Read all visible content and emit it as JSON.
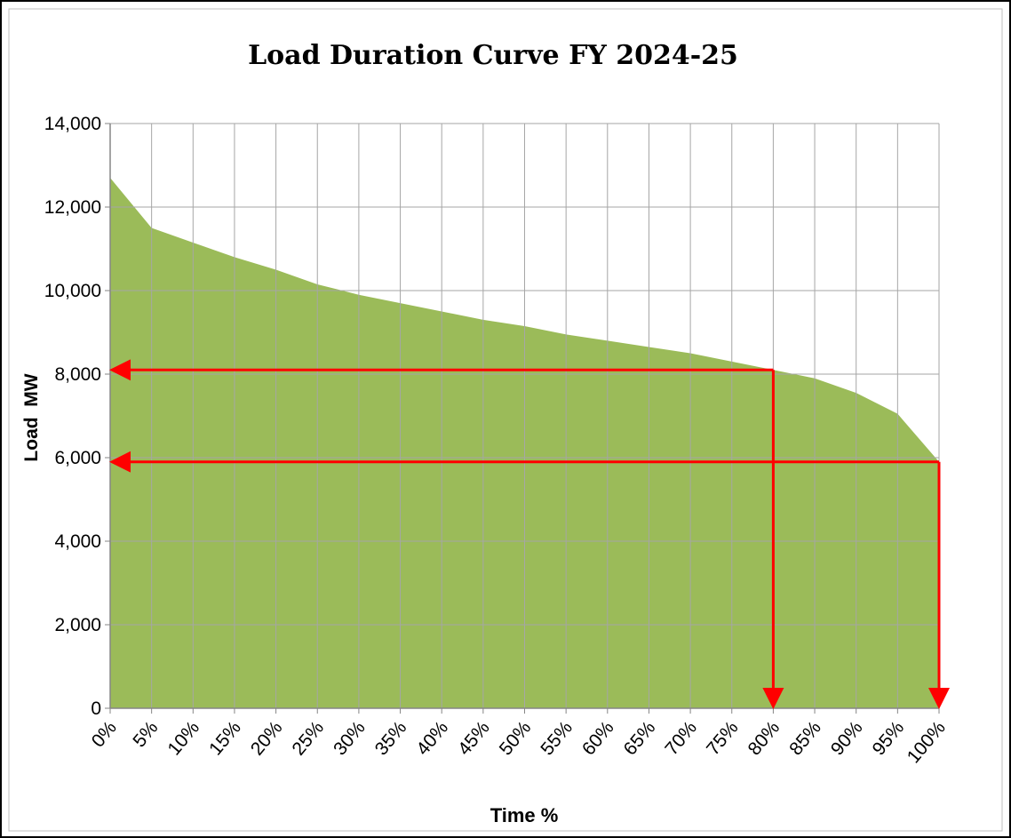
{
  "chart_data": {
    "type": "area",
    "title": "Load Duration Curve FY 2024-25",
    "x_label": "Time %",
    "y_label": "Load  MW",
    "categories": [
      "0%",
      "5%",
      "10%",
      "15%",
      "20%",
      "25%",
      "30%",
      "35%",
      "40%",
      "45%",
      "50%",
      "55%",
      "60%",
      "65%",
      "70%",
      "75%",
      "80%",
      "85%",
      "90%",
      "95%",
      "100%"
    ],
    "series": [
      {
        "name": "Load",
        "color": "#9bbb59",
        "values": [
          12700,
          11500,
          11150,
          10800,
          10500,
          10150,
          9900,
          9700,
          9500,
          9300,
          9150,
          8950,
          8800,
          8650,
          8500,
          8300,
          8100,
          7900,
          7550,
          7050,
          5900
        ]
      }
    ],
    "ylim": [
      0,
      14000
    ],
    "yticks": [
      0,
      {
        "value": 2000,
        "label": "2,000"
      },
      {
        "value": 4000,
        "label": "4,000"
      },
      {
        "value": 6000,
        "label": "6,000"
      },
      {
        "value": 8000,
        "label": "8,000"
      },
      {
        "value": 10000,
        "label": "10,000"
      },
      {
        "value": 12000,
        "label": "12,000"
      },
      {
        "value": 14000,
        "label": "14,000"
      }
    ],
    "grid": true,
    "markers": [
      {
        "x": "80%",
        "y": 8100,
        "color": "#ff0000"
      },
      {
        "x": "100%",
        "y": 5900,
        "color": "#ff0000"
      }
    ]
  }
}
